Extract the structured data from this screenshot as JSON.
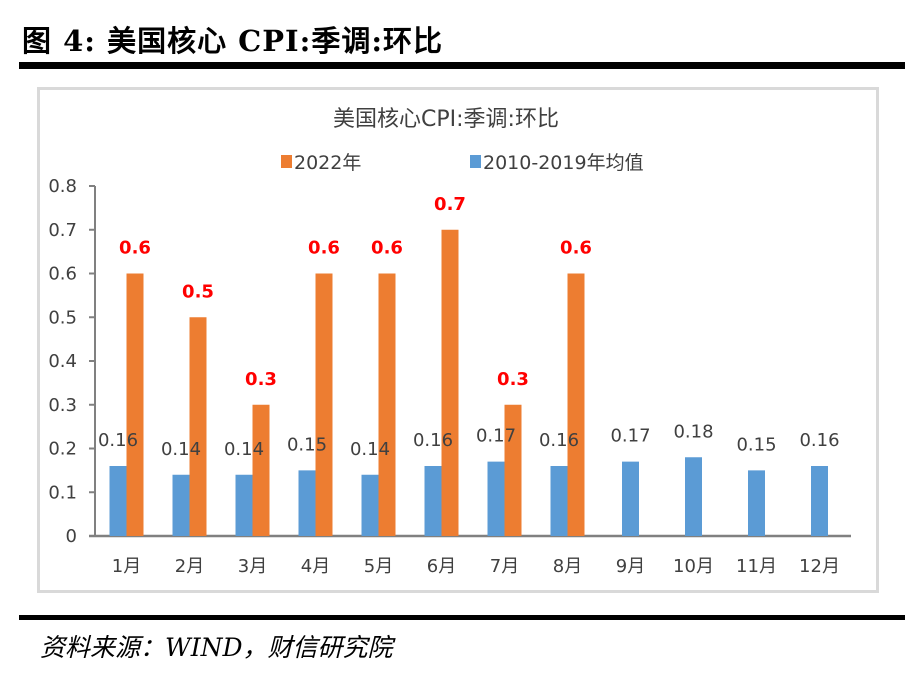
{
  "figure": {
    "title": "图 4:  美国核心 CPI:季调:环比",
    "source": "资料来源：WIND，财信研究院"
  },
  "chart_data": {
    "type": "bar",
    "title": "美国核心CPI:季调:环比",
    "xlabel": "",
    "ylabel": "",
    "ylim": [
      0,
      0.8
    ],
    "yticks": [
      0,
      0.1,
      0.2,
      0.3,
      0.4,
      0.5,
      0.6,
      0.7,
      0.8
    ],
    "ytick_labels": [
      "0",
      "0.1",
      "0.2",
      "0.3",
      "0.4",
      "0.5",
      "0.6",
      "0.7",
      "0.8"
    ],
    "grid": false,
    "legend_position": "top-center",
    "categories": [
      "1月",
      "2月",
      "3月",
      "4月",
      "5月",
      "6月",
      "7月",
      "8月",
      "9月",
      "10月",
      "11月",
      "12月"
    ],
    "series": [
      {
        "name": "2010-2019年均值",
        "color": "#5b9bd5",
        "label_color": "#404040",
        "values": [
          0.16,
          0.14,
          0.14,
          0.15,
          0.14,
          0.16,
          0.17,
          0.16,
          0.17,
          0.18,
          0.15,
          0.16
        ],
        "labels": [
          "0.16",
          "0.14",
          "0.14",
          "0.15",
          "0.14",
          "0.16",
          "0.17",
          "0.16",
          "0.17",
          "0.18",
          "0.15",
          "0.16"
        ]
      },
      {
        "name": "2022年",
        "color": "#ed7d31",
        "label_color": "#ff0000",
        "values": [
          0.6,
          0.5,
          0.3,
          0.6,
          0.6,
          0.7,
          0.3,
          0.6,
          null,
          null,
          null,
          null
        ],
        "labels": [
          "0.6",
          "0.5",
          "0.3",
          "0.6",
          "0.6",
          "0.7",
          "0.3",
          "0.6",
          null,
          null,
          null,
          null
        ]
      }
    ],
    "legend_order": [
      "2022年",
      "2010-2019年均值"
    ]
  }
}
